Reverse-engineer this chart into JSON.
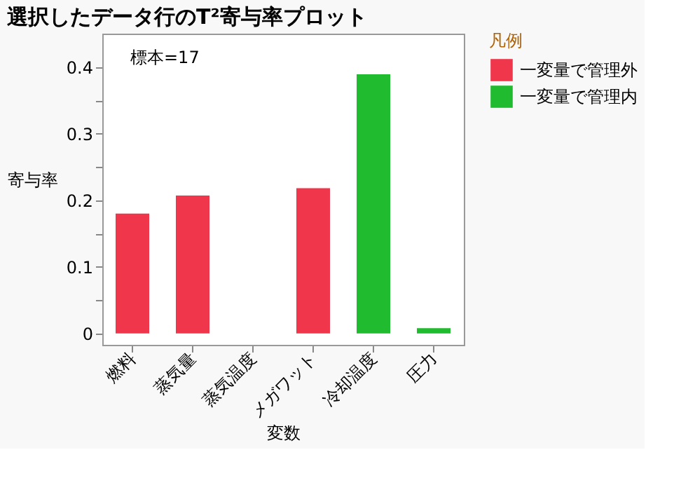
{
  "chart_data": {
    "type": "bar",
    "title": "選択したデータ行のT²寄与率プロット",
    "xlabel": "変数",
    "ylabel": "寄与率",
    "legend_title": "凡例",
    "categories": [
      "燃料",
      "蒸気量",
      "蒸気温度",
      "メガワット",
      "冷却温度",
      "圧力"
    ],
    "series": [
      {
        "name": "一変量で管理外",
        "color": "#f0364b",
        "values": [
          0.18,
          0.207,
          null,
          0.218,
          null,
          null
        ]
      },
      {
        "name": "一変量で管理内",
        "color": "#21bb2f",
        "values": [
          null,
          null,
          null,
          null,
          0.389,
          0.008
        ]
      }
    ],
    "ylim": [
      -0.017,
      0.45
    ],
    "yticks": [
      0,
      {
        "value": 0.05,
        "label": null
      },
      0.1,
      {
        "value": 0.15,
        "label": null
      },
      0.2,
      {
        "value": 0.25,
        "label": null
      },
      0.3,
      {
        "value": 0.35,
        "label": null
      },
      0.4
    ],
    "annotations": [
      "標本=17"
    ],
    "grid": false,
    "legend": "right"
  }
}
